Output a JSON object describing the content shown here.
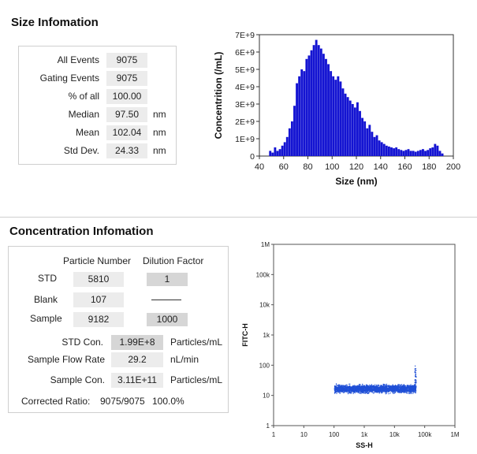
{
  "size_section": {
    "title": "Size Infomation",
    "rows": [
      {
        "label": "All  Events",
        "value": "9075",
        "unit": ""
      },
      {
        "label": "Gating Events",
        "value": "9075",
        "unit": ""
      },
      {
        "label": "% of all",
        "value": "100.00",
        "unit": ""
      },
      {
        "label": "Median",
        "value": "97.50",
        "unit": "nm"
      },
      {
        "label": "Mean",
        "value": "102.04",
        "unit": "nm"
      },
      {
        "label": "Std Dev.",
        "value": "24.33",
        "unit": "nm"
      }
    ]
  },
  "concentration_section": {
    "title": "Concentration Infomation",
    "col_particle": "Particle Number",
    "col_dilution": "Dilution Factor",
    "rows": [
      {
        "label": "STD",
        "particle": "5810",
        "dilution": "1"
      },
      {
        "label": "Blank",
        "particle": "107",
        "dilution": ""
      },
      {
        "label": "Sample",
        "particle": "9182",
        "dilution": "1000"
      }
    ],
    "std_con": {
      "label": "STD Con.",
      "value": "1.99E+8",
      "unit": "Particles/mL"
    },
    "flow_rate": {
      "label": "Sample Flow Rate",
      "value": "29.2",
      "unit": "nL/min"
    },
    "sample_con": {
      "label": "Sample Con.",
      "value": "3.11E+11",
      "unit": "Particles/mL"
    },
    "corrected_ratio": {
      "label": "Corrected Ratio:",
      "value": "9075/9075",
      "percent": "100.0%"
    }
  },
  "chart_data": [
    {
      "type": "bar",
      "title": "",
      "xlabel": "Size (nm)",
      "ylabel": "Concentrition (/mL)",
      "xlim": [
        40,
        200
      ],
      "ylim": [
        0,
        7000000000.0
      ],
      "x_ticks": [
        "40",
        "60",
        "80",
        "100",
        "120",
        "140",
        "160",
        "180",
        "200"
      ],
      "y_ticks": [
        "0",
        "1E+9",
        "2E+9",
        "3E+9",
        "4E+9",
        "5E+9",
        "6E+9",
        "7E+9"
      ],
      "bar_color": "#1414d2",
      "bin_width": 1,
      "x": [
        48,
        50,
        52,
        54,
        56,
        58,
        60,
        62,
        64,
        66,
        68,
        70,
        72,
        74,
        76,
        78,
        80,
        82,
        84,
        86,
        88,
        90,
        92,
        94,
        96,
        98,
        100,
        102,
        104,
        106,
        108,
        110,
        112,
        114,
        116,
        118,
        120,
        122,
        124,
        126,
        128,
        130,
        132,
        134,
        136,
        138,
        140,
        142,
        144,
        146,
        148,
        150,
        152,
        154,
        156,
        158,
        160,
        162,
        164,
        166,
        168,
        170,
        172,
        174,
        176,
        178,
        180,
        182,
        184,
        186,
        188,
        190
      ],
      "y": [
        300000000.0,
        200000000.0,
        500000000.0,
        300000000.0,
        400000000.0,
        600000000.0,
        800000000.0,
        1100000000.0,
        1600000000.0,
        2000000000.0,
        2900000000.0,
        4200000000.0,
        4600000000.0,
        5000000000.0,
        4900000000.0,
        5600000000.0,
        5800000000.0,
        6100000000.0,
        6400000000.0,
        6700000000.0,
        6400000000.0,
        6200000000.0,
        5900000000.0,
        5600000000.0,
        5300000000.0,
        4900000000.0,
        4600000000.0,
        4400000000.0,
        4600000000.0,
        4300000000.0,
        3900000000.0,
        3600000000.0,
        3400000000.0,
        3200000000.0,
        3000000000.0,
        2800000000.0,
        3100000000.0,
        2600000000.0,
        2200000000.0,
        2000000000.0,
        1600000000.0,
        1800000000.0,
        1400000000.0,
        1100000000.0,
        1200000000.0,
        900000000.0,
        800000000.0,
        700000000.0,
        600000000.0,
        550000000.0,
        500000000.0,
        450000000.0,
        500000000.0,
        400000000.0,
        350000000.0,
        300000000.0,
        350000000.0,
        400000000.0,
        300000000.0,
        300000000.0,
        250000000.0,
        300000000.0,
        350000000.0,
        400000000.0,
        300000000.0,
        350000000.0,
        450000000.0,
        500000000.0,
        700000000.0,
        600000000.0,
        300000000.0,
        150000000.0
      ]
    },
    {
      "type": "scatter",
      "title": "",
      "xlabel": "SS-H",
      "ylabel": "FITC-H",
      "x_scale": "log",
      "y_scale": "log",
      "xlim": [
        1,
        1000000
      ],
      "ylim": [
        1,
        1000000
      ],
      "x_ticks": [
        "1",
        "10",
        "100",
        "1k",
        "10k",
        "100k",
        "1M"
      ],
      "y_ticks": [
        "1",
        "10",
        "100",
        "1k",
        "10k",
        "100k",
        "1M"
      ],
      "point_color": "#1f4fd6",
      "cluster": {
        "x_range": [
          100,
          50000
        ],
        "y_range": [
          10,
          30
        ],
        "center_y": 17
      }
    }
  ]
}
